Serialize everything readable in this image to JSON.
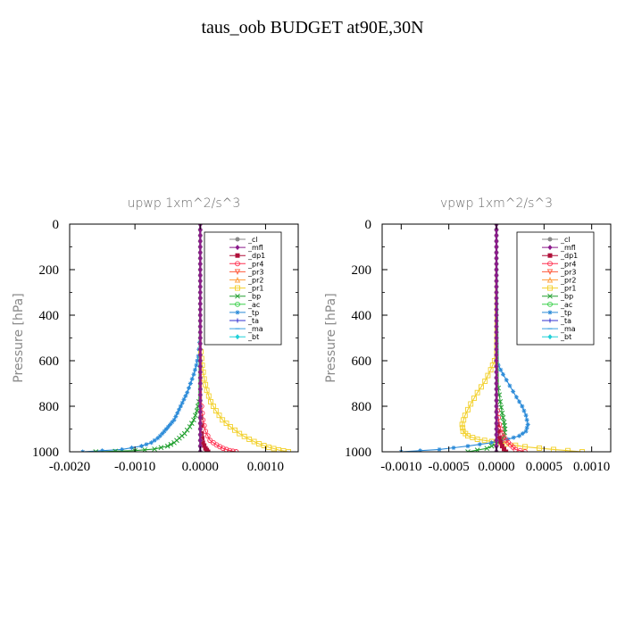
{
  "title": "taus_oob  BUDGET at90E,30N",
  "legend_entries": [
    {
      "name": "_cl",
      "color": "#8a8a8a",
      "marker": "circle"
    },
    {
      "name": "_mfl",
      "color": "#8b1a8b",
      "marker": "diamond"
    },
    {
      "name": "_dp1",
      "color": "#b0103a",
      "marker": "square"
    },
    {
      "name": "_pr4",
      "color": "#ff3050",
      "marker": "circle-open"
    },
    {
      "name": "_pr3",
      "color": "#ff5a3c",
      "marker": "tri-down"
    },
    {
      "name": "_pr2",
      "color": "#ffa040",
      "marker": "tri-up"
    },
    {
      "name": "_pr1",
      "color": "#f2d02a",
      "marker": "square-open"
    },
    {
      "name": "_bp",
      "color": "#22a030",
      "marker": "x"
    },
    {
      "name": "_ac",
      "color": "#3ad04a",
      "marker": "circle-open"
    },
    {
      "name": "_tp",
      "color": "#2a8ad8",
      "marker": "star"
    },
    {
      "name": "_ta",
      "color": "#3030d0",
      "marker": "plus"
    },
    {
      "name": "_ma",
      "color": "#3aa0e0",
      "marker": "dash"
    },
    {
      "name": "_bt",
      "color": "#20d0d8",
      "marker": "diamond-fill"
    }
  ],
  "chart_data": [
    {
      "type": "line",
      "title": "upwp   1xm^2/s^3",
      "ylabel": "Pressure  [hPa]",
      "xlim": [
        -0.002,
        0.0015
      ],
      "ylim": [
        1000,
        0
      ],
      "xticks": [
        -0.002,
        -0.001,
        0.0,
        0.001
      ],
      "xtick_labels": [
        "-0.0020",
        "-0.0010",
        "0.0000",
        "0.0010"
      ],
      "yticks": [
        0,
        200,
        400,
        600,
        800,
        1000
      ],
      "ytick_labels": [
        "0",
        "200",
        "400",
        "600",
        "800",
        "1000"
      ],
      "series": [
        {
          "name": "_tp",
          "color": "#2a8ad8",
          "x": [
            0.0,
            -1e-05,
            -3e-05,
            -6e-05,
            -0.0001,
            -0.00015,
            -0.0002,
            -0.00025,
            -0.0003,
            -0.00035,
            -0.0004,
            -0.00046,
            -0.00052,
            -0.00058,
            -0.00065,
            -0.00075,
            -0.0009,
            -0.0012,
            -0.0018
          ],
          "y": [
            0,
            520,
            580,
            620,
            660,
            700,
            740,
            770,
            800,
            830,
            860,
            880,
            900,
            920,
            940,
            960,
            975,
            990,
            1000
          ]
        },
        {
          "name": "_bp",
          "color": "#22a030",
          "x": [
            0.0,
            -2e-05,
            -5e-05,
            -0.0001,
            -0.00016,
            -0.00024,
            -0.00032,
            -0.0004,
            -0.0005,
            -0.0007,
            -0.001,
            -0.0016
          ],
          "y": [
            0,
            780,
            820,
            860,
            890,
            920,
            940,
            960,
            975,
            988,
            995,
            1000
          ]
        },
        {
          "name": "_pr1",
          "color": "#f2d02a",
          "x": [
            0.0,
            1e-05,
            3e-05,
            6e-05,
            0.0001,
            0.00016,
            0.00024,
            0.00034,
            0.00046,
            0.0006,
            0.00075,
            0.0009,
            0.00105,
            0.0012,
            0.00135
          ],
          "y": [
            0,
            560,
            620,
            680,
            730,
            780,
            820,
            860,
            890,
            920,
            945,
            965,
            980,
            992,
            1000
          ]
        },
        {
          "name": "_pr4",
          "color": "#ff3050",
          "x": [
            0.0,
            2e-05,
            4e-05,
            8e-05,
            0.00015,
            0.00025,
            0.00035,
            0.00045,
            0.00055
          ],
          "y": [
            0,
            800,
            860,
            910,
            950,
            970,
            985,
            995,
            1000
          ]
        },
        {
          "name": "_dp1",
          "color": "#b0103a",
          "x": [
            0.0,
            1e-05,
            2e-05,
            4e-05,
            8e-05,
            0.00012
          ],
          "y": [
            0,
            850,
            920,
            960,
            985,
            1000
          ]
        },
        {
          "name": "_cl",
          "color": "#8a8a8a",
          "x": [
            0.0,
            0.0
          ],
          "y": [
            0,
            1000
          ]
        },
        {
          "name": "_mfl",
          "color": "#8b1a8b",
          "x": [
            0.0,
            0.0
          ],
          "y": [
            0,
            1000
          ]
        }
      ]
    },
    {
      "type": "line",
      "title": "vpwp   1xm^2/s^3",
      "ylabel": "Pressure  [hPa]",
      "xlim": [
        -0.0012,
        0.0012
      ],
      "ylim": [
        1000,
        0
      ],
      "xticks": [
        -0.001,
        -0.0005,
        0.0,
        0.0005,
        0.001
      ],
      "xtick_labels": [
        "-0.0010",
        "-0.0005",
        "0.0000",
        "0.0005",
        "0.0010"
      ],
      "yticks": [
        0,
        200,
        400,
        600,
        800,
        1000
      ],
      "ytick_labels": [
        "0",
        "200",
        "400",
        "600",
        "800",
        "1000"
      ],
      "series": [
        {
          "name": "_pr1",
          "color": "#f2d02a",
          "x": [
            0.0,
            -2e-05,
            -6e-05,
            -0.00012,
            -0.0002,
            -0.00027,
            -0.00033,
            -0.00036,
            -0.00035,
            -0.0003,
            -0.0002,
            -5e-05,
            0.0001,
            0.0003,
            0.0006,
            0.0009
          ],
          "y": [
            0,
            600,
            640,
            690,
            740,
            790,
            840,
            880,
            910,
            930,
            945,
            955,
            965,
            978,
            990,
            1000
          ]
        },
        {
          "name": "_tp",
          "color": "#2a8ad8",
          "x": [
            0.0,
            2e-05,
            7e-05,
            0.00014,
            0.00021,
            0.00027,
            0.00031,
            0.00033,
            0.00031,
            0.00024,
            0.00012,
            -5e-05,
            -0.0003,
            -0.0006,
            -0.001
          ],
          "y": [
            0,
            620,
            660,
            710,
            760,
            800,
            840,
            880,
            910,
            930,
            945,
            960,
            975,
            990,
            1000
          ]
        },
        {
          "name": "_bp",
          "color": "#22a030",
          "x": [
            0.0,
            2e-05,
            4e-05,
            6e-05,
            8e-05,
            9e-05,
            8e-05,
            5e-05,
            0.0,
            -0.0001,
            -0.0003
          ],
          "y": [
            0,
            720,
            780,
            830,
            870,
            900,
            930,
            950,
            965,
            985,
            1000
          ]
        },
        {
          "name": "_pr4",
          "color": "#ff3050",
          "x": [
            0.0,
            1e-05,
            3e-05,
            6e-05,
            0.0001,
            0.00015,
            0.0002,
            0.0003
          ],
          "y": [
            0,
            820,
            880,
            920,
            950,
            970,
            990,
            1000
          ]
        },
        {
          "name": "_dp1",
          "color": "#b0103a",
          "x": [
            0.0,
            1e-05,
            3e-05,
            6e-05,
            0.0001
          ],
          "y": [
            0,
            880,
            940,
            975,
            1000
          ]
        },
        {
          "name": "_cl",
          "color": "#8a8a8a",
          "x": [
            0.0,
            0.0
          ],
          "y": [
            0,
            1000
          ]
        },
        {
          "name": "_mfl",
          "color": "#8b1a8b",
          "x": [
            0.0,
            0.0
          ],
          "y": [
            0,
            1000
          ]
        }
      ]
    }
  ]
}
